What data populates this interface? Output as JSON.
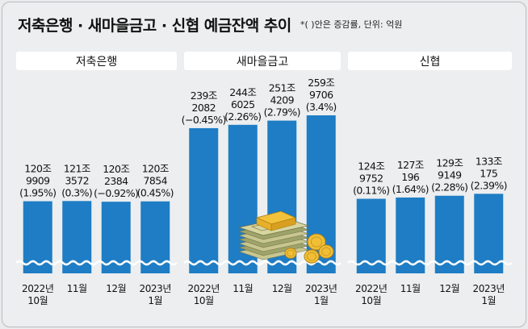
{
  "title": "저축은행 · 새마을금고 · 신협 예금잔액 추이",
  "note": "*( )안은 증감률, 단위: 억원",
  "colors": {
    "bar": "#1e7dc4",
    "background": "#eceeef",
    "header": "#ffffff"
  },
  "chart_data": [
    {
      "type": "bar",
      "title": "저축은행",
      "categories": [
        "2022년 10월",
        "11월",
        "12월",
        "2023년 1월"
      ],
      "tick_labels": [
        [
          "2022년",
          "10월"
        ],
        [
          "11월"
        ],
        [
          "12월"
        ],
        [
          "2023년",
          "1월"
        ]
      ],
      "values": [
        1209909,
        1213572,
        1202384,
        1207854
      ],
      "data_labels": [
        [
          "120조",
          "9909",
          "(1.95%)"
        ],
        [
          "121조",
          "3572",
          "(0.3%)"
        ],
        [
          "120조",
          "2384",
          "(−0.92%)"
        ],
        [
          "120조",
          "7854",
          "(0.45%)"
        ]
      ],
      "axis": "broken"
    },
    {
      "type": "bar",
      "title": "새마을금고",
      "categories": [
        "2022년 10월",
        "11월",
        "12월",
        "2023년 1월"
      ],
      "tick_labels": [
        [
          "2022년",
          "10월"
        ],
        [
          "11월"
        ],
        [
          "12월"
        ],
        [
          "2023년",
          "1월"
        ]
      ],
      "values": [
        2392082,
        2446025,
        2514209,
        2599706
      ],
      "data_labels": [
        [
          "239조",
          "2082",
          "(−0.45%)"
        ],
        [
          "244조",
          "6025",
          "(2.26%)"
        ],
        [
          "251조",
          "4209",
          "(2.79%)"
        ],
        [
          "259조",
          "9706",
          "(3.4%)"
        ]
      ],
      "axis": "broken"
    },
    {
      "type": "bar",
      "title": "신협",
      "categories": [
        "2022년 10월",
        "11월",
        "12월",
        "2023년 1월"
      ],
      "tick_labels": [
        [
          "2022년",
          "10월"
        ],
        [
          "11월"
        ],
        [
          "12월"
        ],
        [
          "2023년",
          "1월"
        ]
      ],
      "values": [
        1249752,
        1270196,
        1299149,
        1330175
      ],
      "data_labels": [
        [
          "124조",
          "9752",
          "(0.11%)"
        ],
        [
          "127조",
          "196",
          "(1.64%)"
        ],
        [
          "129조",
          "9149",
          "(2.28%)"
        ],
        [
          "133조",
          "175",
          "(2.39%)"
        ]
      ],
      "axis": "broken"
    }
  ],
  "illustration": "money-stack-coins-icon"
}
